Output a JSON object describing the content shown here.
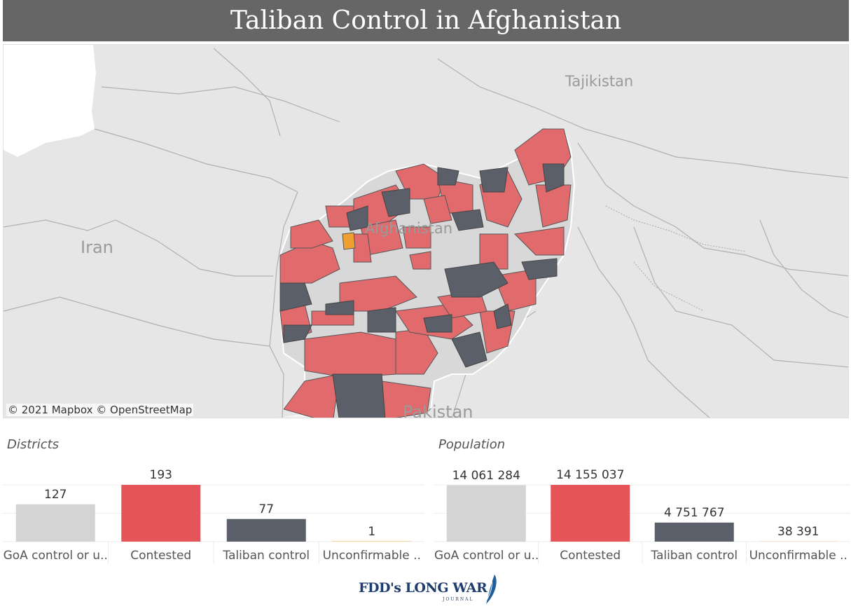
{
  "title": "Taliban Control in Afghanistan",
  "map": {
    "labels": {
      "tajikistan": "Tajikistan",
      "afghanistan": "Afghanistan",
      "iran": "Iran",
      "pakistan": "Pakistan"
    },
    "attribution": "© 2021 Mapbox © OpenStreetMap",
    "legend_colors": {
      "goa": "#d4d4d4",
      "contested": "#e55458",
      "taliban": "#5b5f69",
      "unconfirmable": "#f0a030"
    }
  },
  "districts": {
    "title": "Districts",
    "chart_data": {
      "type": "bar",
      "categories": [
        "GoA control or u..",
        "Contested",
        "Taliban control",
        "Unconfirmable .."
      ],
      "values": [
        127,
        193,
        77,
        1
      ],
      "value_labels": [
        "127",
        "193",
        "77",
        "1"
      ],
      "colors": [
        "#d4d4d4",
        "#e55458",
        "#5b5f69",
        "#f0a030"
      ]
    }
  },
  "population": {
    "title": "Population",
    "chart_data": {
      "type": "bar",
      "categories": [
        "GoA control or u..",
        "Contested",
        "Taliban control",
        "Unconfirmable .."
      ],
      "values": [
        14061284,
        14155037,
        4751767,
        38391
      ],
      "value_labels": [
        "14 061 284",
        "14 155 037",
        "4 751 767",
        "38 391"
      ],
      "colors": [
        "#d4d4d4",
        "#e55458",
        "#5b5f69",
        "#f0a030"
      ]
    }
  },
  "logo": {
    "text": "FDD's LONG WAR",
    "sub": "JOURNAL"
  }
}
